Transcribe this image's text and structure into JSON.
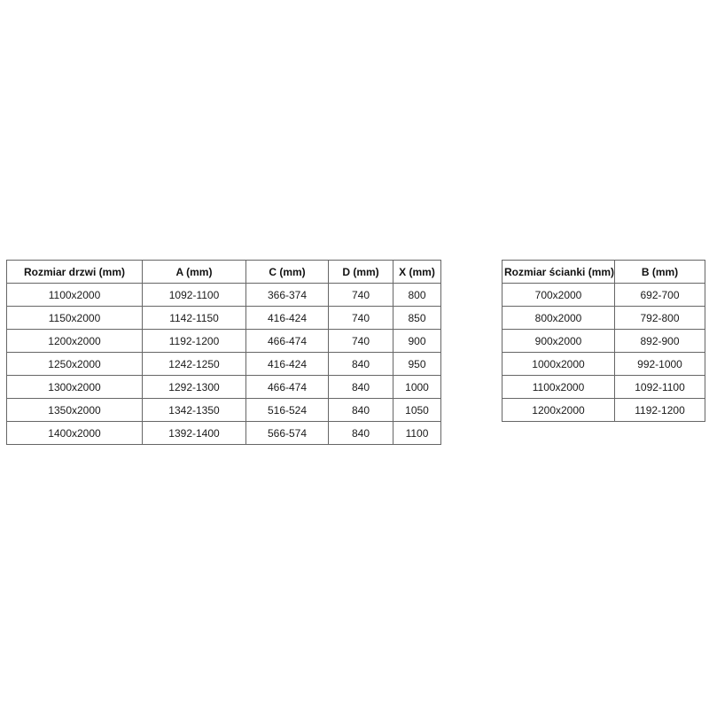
{
  "colors": {
    "background": "#ffffff",
    "border": "#666666",
    "text": "#1a1a1a"
  },
  "tables": {
    "doors": {
      "title": "door-dimensions",
      "headers": [
        "Rozmiar drzwi (mm)",
        "A (mm)",
        "C (mm)",
        "D (mm)",
        "X (mm)"
      ],
      "rows": [
        [
          "1100x2000",
          "1092-1100",
          "366-374",
          "740",
          "800"
        ],
        [
          "1150x2000",
          "1142-1150",
          "416-424",
          "740",
          "850"
        ],
        [
          "1200x2000",
          "1192-1200",
          "466-474",
          "740",
          "900"
        ],
        [
          "1250x2000",
          "1242-1250",
          "416-424",
          "840",
          "950"
        ],
        [
          "1300x2000",
          "1292-1300",
          "466-474",
          "840",
          "1000"
        ],
        [
          "1350x2000",
          "1342-1350",
          "516-524",
          "840",
          "1050"
        ],
        [
          "1400x2000",
          "1392-1400",
          "566-574",
          "840",
          "1100"
        ]
      ]
    },
    "walls": {
      "title": "wall-panel-dimensions",
      "headers": [
        "Rozmiar ścianki (mm)",
        "B (mm)"
      ],
      "rows": [
        [
          "700x2000",
          "692-700"
        ],
        [
          "800x2000",
          "792-800"
        ],
        [
          "900x2000",
          "892-900"
        ],
        [
          "1000x2000",
          "992-1000"
        ],
        [
          "1100x2000",
          "1092-1100"
        ],
        [
          "1200x2000",
          "1192-1200"
        ]
      ]
    }
  }
}
